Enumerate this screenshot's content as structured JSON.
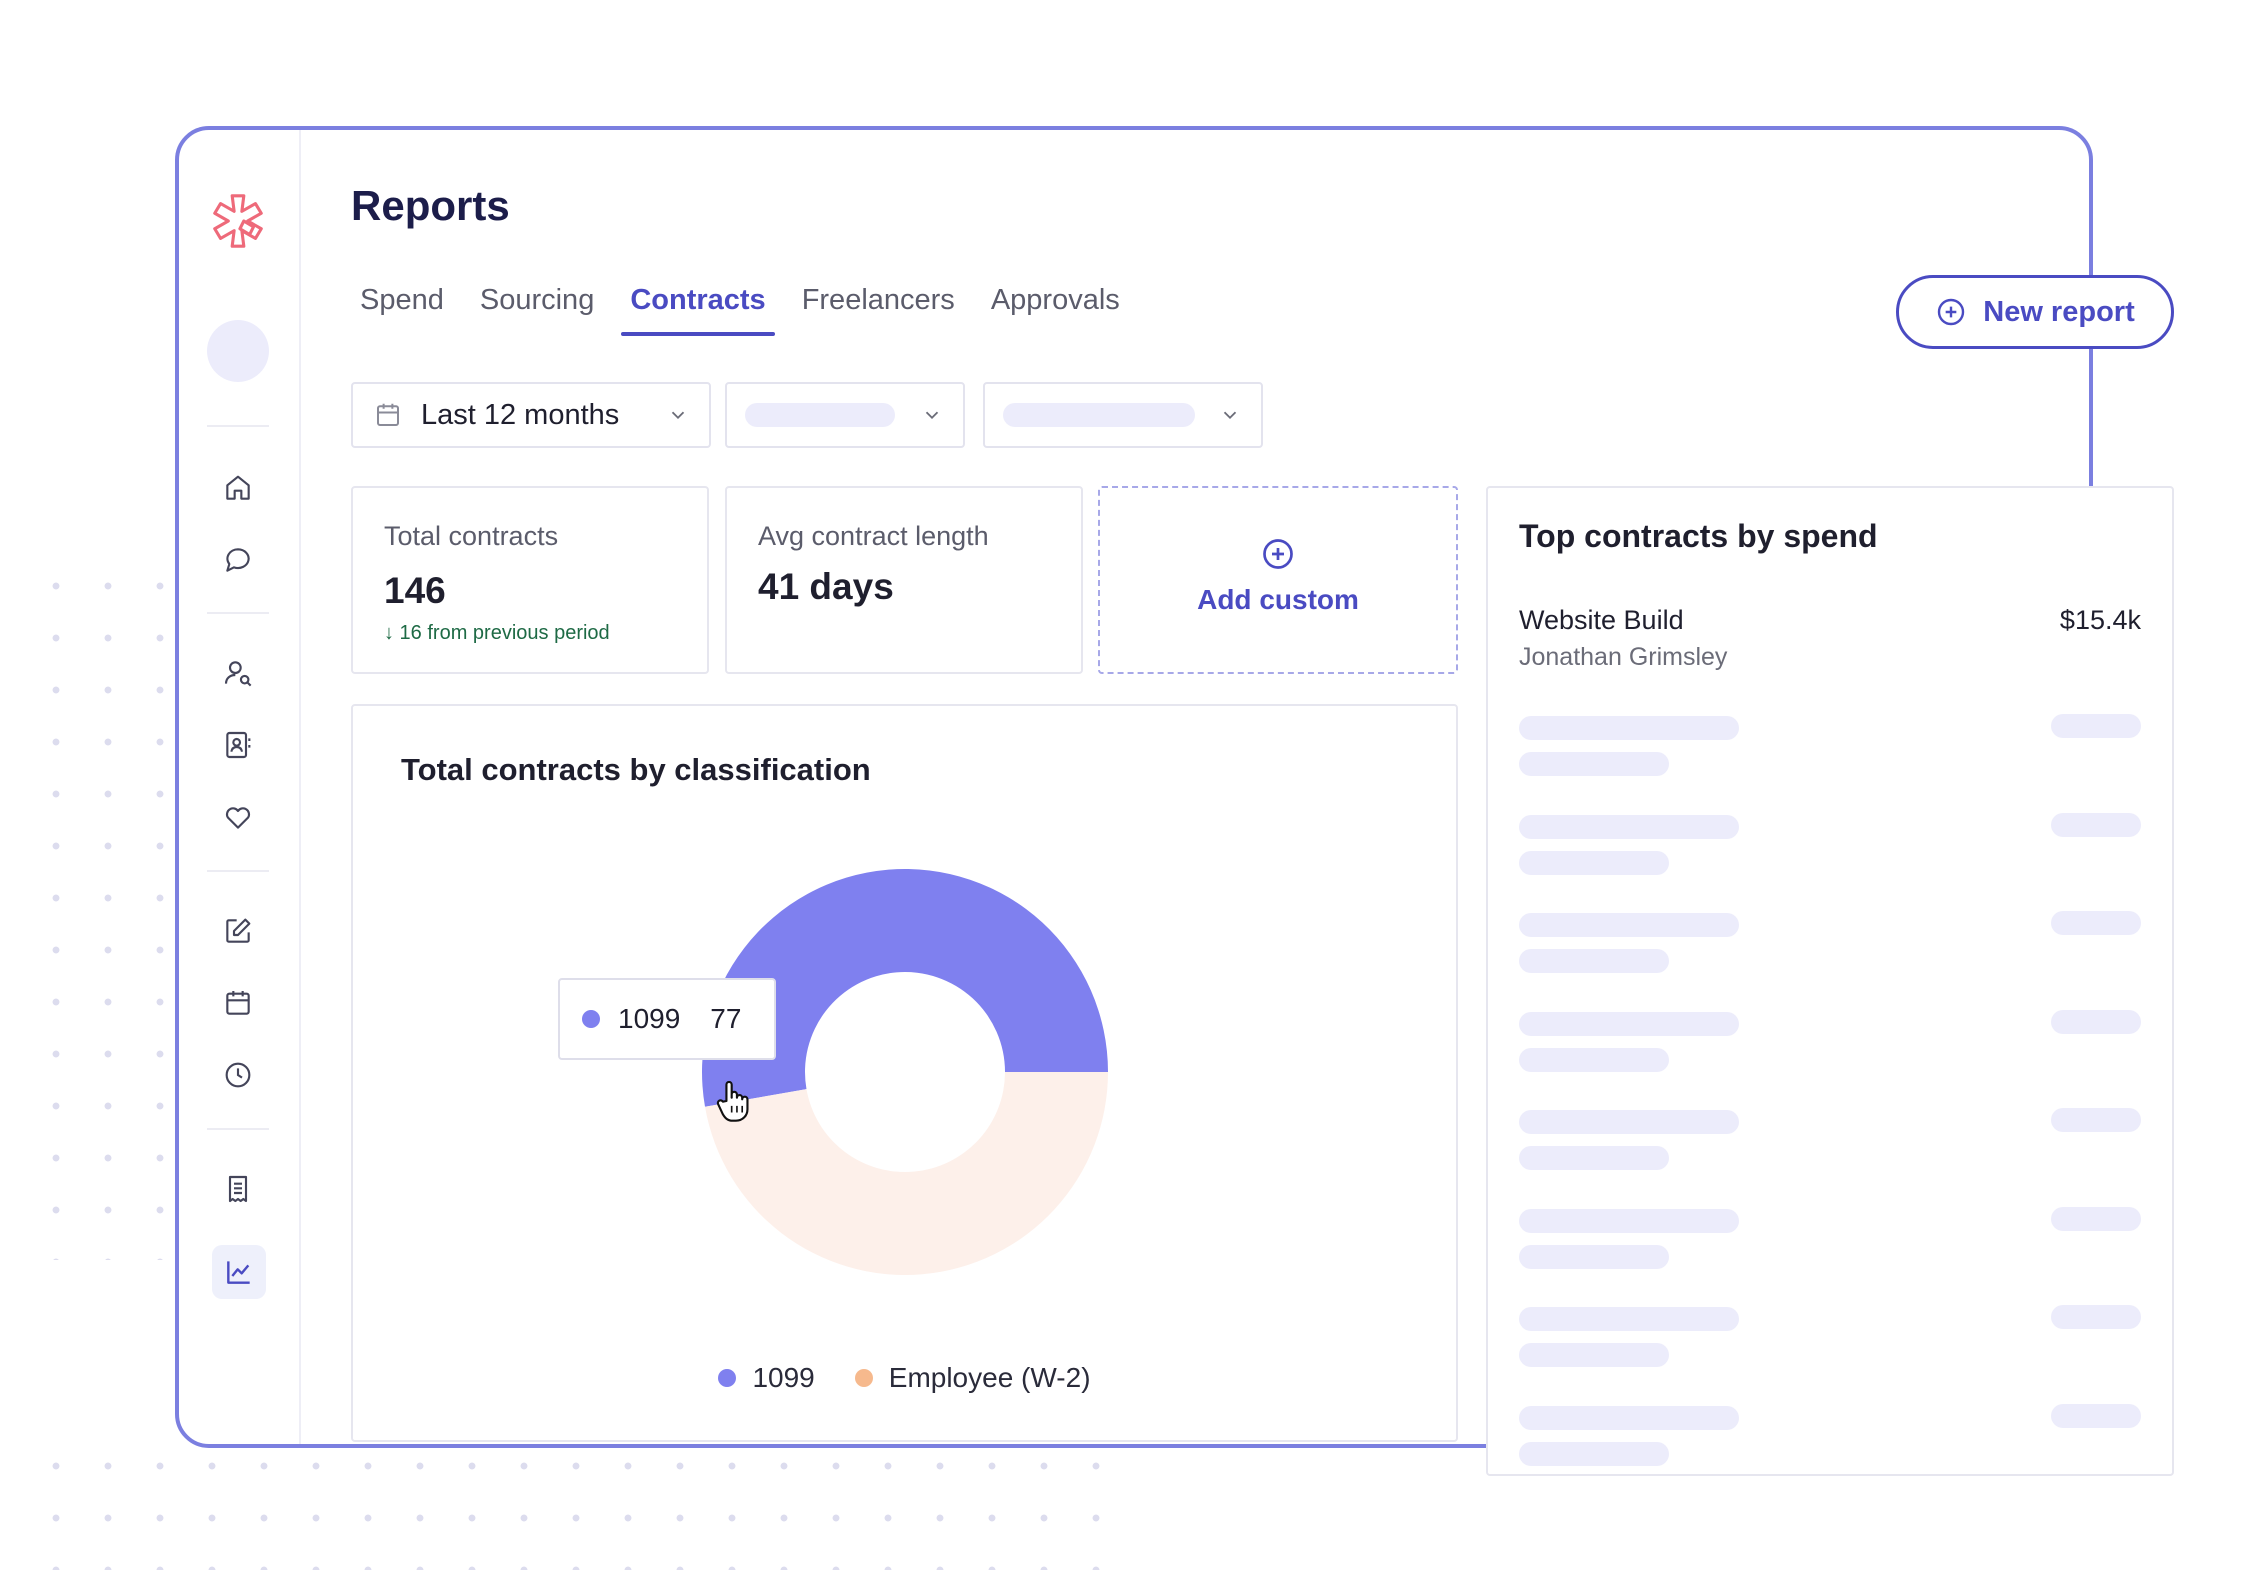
{
  "page": {
    "title": "Reports",
    "tabs": [
      {
        "label": "Spend",
        "active": false
      },
      {
        "label": "Sourcing",
        "active": false
      },
      {
        "label": "Contracts",
        "active": true
      },
      {
        "label": "Freelancers",
        "active": false
      },
      {
        "label": "Approvals",
        "active": false
      }
    ],
    "new_report_label": "New report"
  },
  "sidebar": {
    "icons": [
      "home-icon",
      "chat-icon",
      "user-search-icon",
      "contact-book-icon",
      "heart-icon",
      "edit-icon",
      "calendar-icon",
      "clock-icon",
      "receipt-icon",
      "chart-icon"
    ],
    "active_icon": "chart-icon"
  },
  "filters": {
    "date_range": "Last 12 months"
  },
  "metrics": {
    "total_contracts": {
      "label": "Total contracts",
      "value": "146",
      "delta": "↓ 16 from previous period"
    },
    "avg_length": {
      "label": "Avg contract length",
      "value": "41 days"
    },
    "add_custom_label": "Add custom"
  },
  "chart_card": {
    "title": "Total contracts by classification"
  },
  "chart_data": {
    "type": "pie",
    "title": "Total contracts by classification",
    "categories": [
      "1099",
      "Employee (W-2)"
    ],
    "values": [
      77,
      69
    ],
    "colors": [
      "#7f80ef",
      "#fdf0ea"
    ],
    "legend_colors": [
      "#7f80ef",
      "#f6b98d"
    ],
    "donut": true,
    "legend": "bottom",
    "tooltip": {
      "label": "1099",
      "value": "77"
    }
  },
  "top_contracts": {
    "title": "Top contracts by spend",
    "first": {
      "name": "Website Build",
      "person": "Jonathan Grimsley",
      "amount": "$15.4k"
    }
  },
  "colors": {
    "accent": "#4a4bc2",
    "frame_border": "#7b7fe0",
    "skeleton": "#ececfb",
    "positive_delta": "#1e6a45"
  }
}
